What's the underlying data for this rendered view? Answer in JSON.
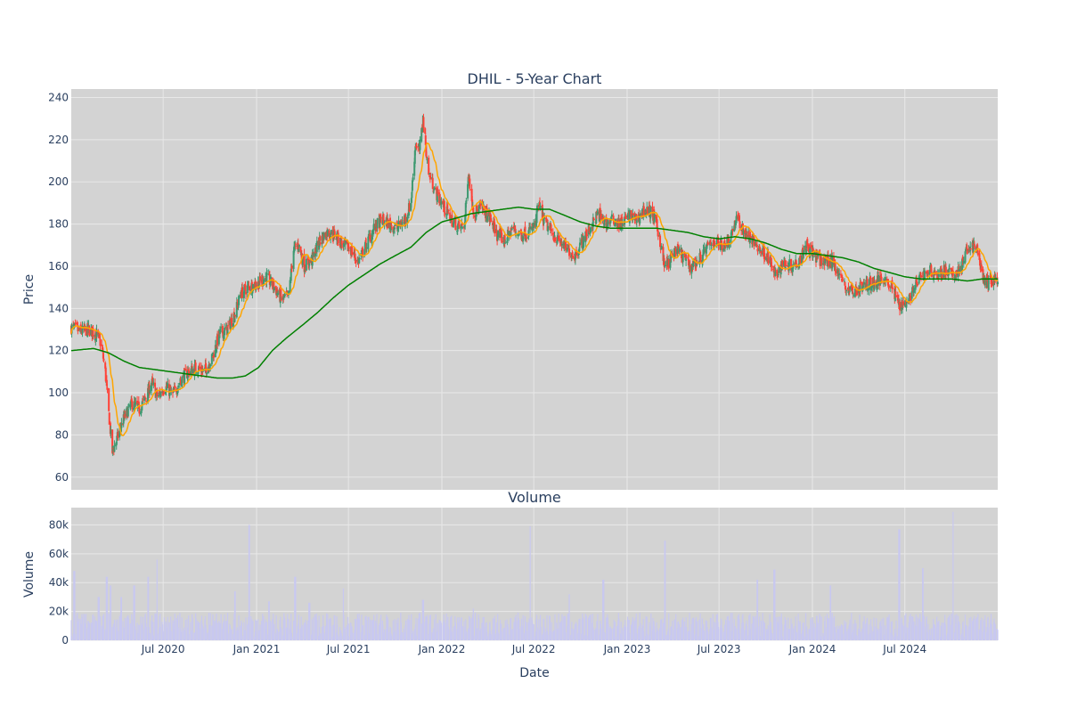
{
  "chart_data": [
    {
      "type": "candlestick",
      "title": "DHIL - 5-Year Chart",
      "ylabel": "Price",
      "ylim": [
        54,
        244
      ],
      "yticks": [
        60,
        80,
        100,
        120,
        140,
        160,
        180,
        200,
        220,
        240
      ],
      "xlim": [
        "2020-01-02",
        "2024-12-31"
      ],
      "grid": true,
      "colors": {
        "up": "#3d9970",
        "down": "#ff4136",
        "ma_short": "#ffa500",
        "ma_long": "#008000",
        "plot_bg": "#d3d3d3",
        "grid": "#e8e8e8"
      },
      "price_path": [
        [
          "2020-01-02",
          131
        ],
        [
          "2020-01-20",
          129
        ],
        [
          "2020-02-05",
          130
        ],
        [
          "2020-02-20",
          128
        ],
        [
          "2020-03-01",
          123
        ],
        [
          "2020-03-09",
          110
        ],
        [
          "2020-03-16",
          90
        ],
        [
          "2020-03-23",
          72
        ],
        [
          "2020-04-01",
          78
        ],
        [
          "2020-04-15",
          88
        ],
        [
          "2020-05-01",
          95
        ],
        [
          "2020-05-15",
          92
        ],
        [
          "2020-06-01",
          100
        ],
        [
          "2020-06-08",
          105
        ],
        [
          "2020-06-20",
          98
        ],
        [
          "2020-07-05",
          103
        ],
        [
          "2020-07-20",
          99
        ],
        [
          "2020-08-05",
          106
        ],
        [
          "2020-08-20",
          110
        ],
        [
          "2020-09-05",
          112
        ],
        [
          "2020-09-20",
          110
        ],
        [
          "2020-10-05",
          116
        ],
        [
          "2020-10-20",
          128
        ],
        [
          "2020-11-05",
          130
        ],
        [
          "2020-11-20",
          138
        ],
        [
          "2020-12-01",
          147
        ],
        [
          "2020-12-15",
          150
        ],
        [
          "2021-01-05",
          152
        ],
        [
          "2021-01-20",
          155
        ],
        [
          "2021-02-05",
          150
        ],
        [
          "2021-02-20",
          144
        ],
        [
          "2021-03-05",
          146
        ],
        [
          "2021-03-15",
          168
        ],
        [
          "2021-03-25",
          170
        ],
        [
          "2021-04-05",
          160
        ],
        [
          "2021-04-20",
          163
        ],
        [
          "2021-05-05",
          172
        ],
        [
          "2021-05-20",
          176
        ],
        [
          "2021-06-05",
          175
        ],
        [
          "2021-06-20",
          170
        ],
        [
          "2021-07-05",
          168
        ],
        [
          "2021-07-20",
          162
        ],
        [
          "2021-08-05",
          170
        ],
        [
          "2021-08-20",
          178
        ],
        [
          "2021-09-05",
          182
        ],
        [
          "2021-09-20",
          180
        ],
        [
          "2021-10-05",
          178
        ],
        [
          "2021-10-20",
          182
        ],
        [
          "2021-11-01",
          190
        ],
        [
          "2021-11-10",
          218
        ],
        [
          "2021-11-18",
          215
        ],
        [
          "2021-11-25",
          230
        ],
        [
          "2021-12-05",
          205
        ],
        [
          "2021-12-20",
          195
        ],
        [
          "2022-01-05",
          188
        ],
        [
          "2022-01-20",
          182
        ],
        [
          "2022-02-05",
          178
        ],
        [
          "2022-02-15",
          180
        ],
        [
          "2022-02-22",
          205
        ],
        [
          "2022-03-05",
          185
        ],
        [
          "2022-03-20",
          188
        ],
        [
          "2022-04-05",
          183
        ],
        [
          "2022-04-20",
          175
        ],
        [
          "2022-05-05",
          172
        ],
        [
          "2022-05-20",
          178
        ],
        [
          "2022-06-05",
          175
        ],
        [
          "2022-06-20",
          176
        ],
        [
          "2022-07-05",
          180
        ],
        [
          "2022-07-10",
          190
        ],
        [
          "2022-07-20",
          182
        ],
        [
          "2022-08-05",
          176
        ],
        [
          "2022-08-20",
          172
        ],
        [
          "2022-09-05",
          168
        ],
        [
          "2022-09-20",
          165
        ],
        [
          "2022-10-05",
          172
        ],
        [
          "2022-10-20",
          178
        ],
        [
          "2022-11-05",
          185
        ],
        [
          "2022-11-20",
          180
        ],
        [
          "2022-12-05",
          182
        ],
        [
          "2022-12-20",
          180
        ],
        [
          "2023-01-05",
          184
        ],
        [
          "2023-01-20",
          182
        ],
        [
          "2023-02-05",
          187
        ],
        [
          "2023-02-20",
          185
        ],
        [
          "2023-03-05",
          175
        ],
        [
          "2023-03-15",
          160
        ],
        [
          "2023-03-25",
          162
        ],
        [
          "2023-04-05",
          168
        ],
        [
          "2023-04-20",
          165
        ],
        [
          "2023-05-05",
          160
        ],
        [
          "2023-05-20",
          162
        ],
        [
          "2023-06-05",
          168
        ],
        [
          "2023-06-20",
          172
        ],
        [
          "2023-07-05",
          170
        ],
        [
          "2023-07-20",
          172
        ],
        [
          "2023-08-05",
          183
        ],
        [
          "2023-08-20",
          176
        ],
        [
          "2023-09-05",
          172
        ],
        [
          "2023-09-20",
          168
        ],
        [
          "2023-10-05",
          165
        ],
        [
          "2023-10-20",
          155
        ],
        [
          "2023-11-05",
          162
        ],
        [
          "2023-11-20",
          160
        ],
        [
          "2023-12-05",
          163
        ],
        [
          "2023-12-20",
          170
        ],
        [
          "2024-01-05",
          165
        ],
        [
          "2024-01-20",
          162
        ],
        [
          "2024-02-05",
          163
        ],
        [
          "2024-02-20",
          158
        ],
        [
          "2024-03-05",
          150
        ],
        [
          "2024-03-20",
          148
        ],
        [
          "2024-04-05",
          150
        ],
        [
          "2024-04-20",
          152
        ],
        [
          "2024-05-05",
          152
        ],
        [
          "2024-05-20",
          155
        ],
        [
          "2024-06-05",
          150
        ],
        [
          "2024-06-20",
          142
        ],
        [
          "2024-07-05",
          143
        ],
        [
          "2024-07-20",
          150
        ],
        [
          "2024-08-05",
          156
        ],
        [
          "2024-08-20",
          158
        ],
        [
          "2024-09-05",
          156
        ],
        [
          "2024-09-20",
          158
        ],
        [
          "2024-10-05",
          155
        ],
        [
          "2024-10-20",
          160
        ],
        [
          "2024-11-05",
          170
        ],
        [
          "2024-11-20",
          168
        ],
        [
          "2024-12-05",
          152
        ],
        [
          "2024-12-31",
          154
        ]
      ],
      "ma_long_path": [
        [
          "2020-01-02",
          120
        ],
        [
          "2020-02-15",
          121
        ],
        [
          "2020-03-15",
          119
        ],
        [
          "2020-04-15",
          115
        ],
        [
          "2020-05-15",
          112
        ],
        [
          "2020-06-15",
          111
        ],
        [
          "2020-07-15",
          110
        ],
        [
          "2020-08-15",
          109
        ],
        [
          "2020-09-15",
          108
        ],
        [
          "2020-10-15",
          107
        ],
        [
          "2020-11-15",
          107
        ],
        [
          "2020-12-10",
          108
        ],
        [
          "2021-01-05",
          112
        ],
        [
          "2021-02-01",
          120
        ],
        [
          "2021-03-01",
          126
        ],
        [
          "2021-04-01",
          132
        ],
        [
          "2021-05-01",
          138
        ],
        [
          "2021-06-01",
          145
        ],
        [
          "2021-07-01",
          151
        ],
        [
          "2021-08-01",
          156
        ],
        [
          "2021-09-01",
          161
        ],
        [
          "2021-10-01",
          165
        ],
        [
          "2021-11-01",
          169
        ],
        [
          "2021-12-01",
          176
        ],
        [
          "2022-01-01",
          181
        ],
        [
          "2022-02-01",
          183
        ],
        [
          "2022-03-01",
          185
        ],
        [
          "2022-04-01",
          186
        ],
        [
          "2022-05-01",
          187
        ],
        [
          "2022-06-01",
          188
        ],
        [
          "2022-07-01",
          187
        ],
        [
          "2022-08-01",
          187
        ],
        [
          "2022-09-01",
          184
        ],
        [
          "2022-10-01",
          181
        ],
        [
          "2022-11-01",
          179
        ],
        [
          "2022-12-01",
          178
        ],
        [
          "2023-01-01",
          178
        ],
        [
          "2023-02-01",
          178
        ],
        [
          "2023-03-01",
          178
        ],
        [
          "2023-04-01",
          177
        ],
        [
          "2023-05-01",
          176
        ],
        [
          "2023-06-01",
          174
        ],
        [
          "2023-07-01",
          173
        ],
        [
          "2023-08-01",
          174
        ],
        [
          "2023-09-01",
          173
        ],
        [
          "2023-10-01",
          171
        ],
        [
          "2023-11-01",
          168
        ],
        [
          "2023-12-01",
          166
        ],
        [
          "2024-01-01",
          166
        ],
        [
          "2024-02-01",
          165
        ],
        [
          "2024-03-01",
          164
        ],
        [
          "2024-04-01",
          162
        ],
        [
          "2024-05-01",
          159
        ],
        [
          "2024-06-01",
          157
        ],
        [
          "2024-07-01",
          155
        ],
        [
          "2024-08-01",
          154
        ],
        [
          "2024-09-01",
          154
        ],
        [
          "2024-10-01",
          154
        ],
        [
          "2024-11-01",
          153
        ],
        [
          "2024-12-01",
          154
        ],
        [
          "2024-12-31",
          154
        ]
      ]
    },
    {
      "type": "bar",
      "title": "Volume",
      "ylabel": "Volume",
      "xlabel": "Date",
      "ylim": [
        0,
        92000
      ],
      "yticks": [
        0,
        20000,
        40000,
        60000,
        80000
      ],
      "ytick_labels": [
        "0",
        "20k",
        "40k",
        "60k",
        "80k"
      ],
      "xtick_labels": [
        "Jul 2020",
        "Jan 2021",
        "Jul 2021",
        "Jan 2022",
        "Jul 2022",
        "Jan 2023",
        "Jul 2023",
        "Jan 2024",
        "Jul 2024"
      ],
      "xtick_dates": [
        "2020-07-01",
        "2021-01-01",
        "2021-07-01",
        "2022-01-01",
        "2022-07-01",
        "2023-01-01",
        "2023-07-01",
        "2024-01-01",
        "2024-07-01"
      ],
      "colors": {
        "bar": "#c8c8f0"
      },
      "typical_volume": 12000,
      "volume_spikes": [
        [
          "2020-01-08",
          48000
        ],
        [
          "2020-02-25",
          30000
        ],
        [
          "2020-03-12",
          44000
        ],
        [
          "2020-03-20",
          38000
        ],
        [
          "2020-04-10",
          30000
        ],
        [
          "2020-05-05",
          38000
        ],
        [
          "2020-06-01",
          44000
        ],
        [
          "2020-06-20",
          56000
        ],
        [
          "2020-11-20",
          34000
        ],
        [
          "2020-12-18",
          80000
        ],
        [
          "2021-01-25",
          27000
        ],
        [
          "2021-03-18",
          44000
        ],
        [
          "2021-04-15",
          26000
        ],
        [
          "2021-06-20",
          36000
        ],
        [
          "2021-11-25",
          28000
        ],
        [
          "2022-03-05",
          22000
        ],
        [
          "2022-06-25",
          79000
        ],
        [
          "2022-09-10",
          32000
        ],
        [
          "2022-11-15",
          42000
        ],
        [
          "2023-03-17",
          69000
        ],
        [
          "2023-09-15",
          42000
        ],
        [
          "2023-10-18",
          49000
        ],
        [
          "2024-02-05",
          38000
        ],
        [
          "2024-06-20",
          77000
        ],
        [
          "2024-08-05",
          50000
        ],
        [
          "2024-10-05",
          89000
        ]
      ]
    }
  ]
}
